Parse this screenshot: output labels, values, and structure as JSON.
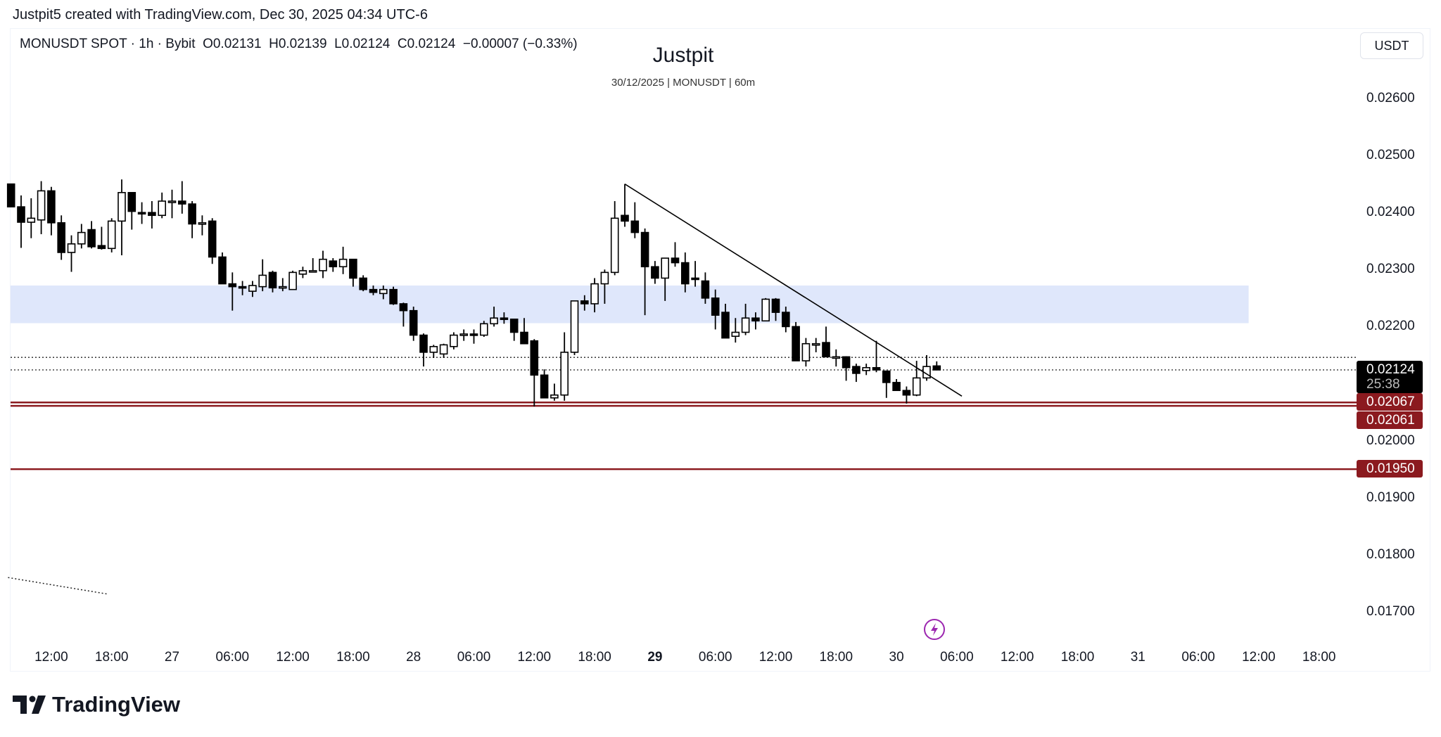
{
  "credit": "Justpit5 created with TradingView.com, Dec 30, 2025 04:34 UTC-6",
  "legend": {
    "symbol": "MONUSDT SPOT · 1h · Bybit",
    "open": "O0.02131",
    "high": "H0.02139",
    "low": "L0.02124",
    "close": "C0.02124",
    "change": "−0.00007 (−0.33%)"
  },
  "watermark": {
    "title": "Justpit",
    "subtitle": "30/12/2025 | MONUSDT | 60m"
  },
  "currency_button": "USDT",
  "price_axis": [
    "0.02600",
    "0.02500",
    "0.02400",
    "0.02300",
    "0.02200",
    "0.02000",
    "0.01900",
    "0.01800",
    "0.01700"
  ],
  "badges": {
    "last_price": "0.02124",
    "countdown": "25:38",
    "level1": "0.02067",
    "level2": "0.02061",
    "level3": "0.01950"
  },
  "time_axis": [
    "12:00",
    "18:00",
    "27",
    "06:00",
    "12:00",
    "18:00",
    "28",
    "06:00",
    "12:00",
    "18:00",
    "29",
    "06:00",
    "12:00",
    "18:00",
    "30",
    "06:00",
    "12:00",
    "18:00",
    "31",
    "06:00",
    "12:00",
    "18:00"
  ],
  "brand": "TradingView",
  "colors": {
    "up_body": "#ffffff",
    "down_body": "#000000",
    "zone": "#dfe7fb",
    "level": "#8b1a1f",
    "last": "#000000"
  },
  "chart_data": {
    "type": "candlestick",
    "interval": "1h",
    "first_candle": "Dec 26 08:00",
    "ylim": [
      0.0165,
      0.0265
    ],
    "candles_ohlc": [
      [
        0.0245,
        0.0245,
        0.0241,
        0.0241
      ],
      [
        0.0241,
        0.0243,
        0.02338,
        0.02383
      ],
      [
        0.02383,
        0.02425,
        0.02355,
        0.0239
      ],
      [
        0.02387,
        0.02455,
        0.02362,
        0.02438
      ],
      [
        0.02438,
        0.02445,
        0.0236,
        0.02382
      ],
      [
        0.02382,
        0.02395,
        0.02317,
        0.0233
      ],
      [
        0.0233,
        0.0236,
        0.02296,
        0.02345
      ],
      [
        0.02345,
        0.0238,
        0.02337,
        0.02365
      ],
      [
        0.0237,
        0.02385,
        0.02337,
        0.0234
      ],
      [
        0.02342,
        0.02375,
        0.02335,
        0.02337
      ],
      [
        0.02337,
        0.0239,
        0.0233,
        0.02385
      ],
      [
        0.02385,
        0.02458,
        0.02325,
        0.02435
      ],
      [
        0.02435,
        0.02435,
        0.0237,
        0.02402
      ],
      [
        0.024,
        0.02418,
        0.0238,
        0.02398
      ],
      [
        0.024,
        0.0242,
        0.02372,
        0.02395
      ],
      [
        0.02395,
        0.02435,
        0.0239,
        0.0242
      ],
      [
        0.02418,
        0.0244,
        0.0239,
        0.0242
      ],
      [
        0.0242,
        0.02455,
        0.02398,
        0.02415
      ],
      [
        0.02415,
        0.0242,
        0.02355,
        0.0238
      ],
      [
        0.0238,
        0.02395,
        0.0236,
        0.02382
      ],
      [
        0.02385,
        0.0239,
        0.0231,
        0.02322
      ],
      [
        0.02322,
        0.0233,
        0.02275,
        0.02275
      ],
      [
        0.02275,
        0.02295,
        0.02228,
        0.0227
      ],
      [
        0.0227,
        0.0228,
        0.02255,
        0.02268
      ],
      [
        0.02262,
        0.0228,
        0.02252,
        0.02272
      ],
      [
        0.0227,
        0.02318,
        0.02262,
        0.0229
      ],
      [
        0.02295,
        0.02298,
        0.0226,
        0.02268
      ],
      [
        0.02268,
        0.02285,
        0.02262,
        0.0227
      ],
      [
        0.02265,
        0.02298,
        0.02265,
        0.02295
      ],
      [
        0.02292,
        0.02305,
        0.02285,
        0.02298
      ],
      [
        0.02298,
        0.0232,
        0.02295,
        0.02298
      ],
      [
        0.02298,
        0.02333,
        0.02285,
        0.02318
      ],
      [
        0.02315,
        0.0232,
        0.02296,
        0.02305
      ],
      [
        0.02305,
        0.0234,
        0.02292,
        0.02318
      ],
      [
        0.02318,
        0.02318,
        0.0227,
        0.02285
      ],
      [
        0.02285,
        0.0229,
        0.02262,
        0.02265
      ],
      [
        0.02265,
        0.02272,
        0.02255,
        0.0226
      ],
      [
        0.02258,
        0.02272,
        0.02248,
        0.02265
      ],
      [
        0.02265,
        0.0227,
        0.02238,
        0.0224
      ],
      [
        0.0224,
        0.02242,
        0.022,
        0.02228
      ],
      [
        0.02228,
        0.02235,
        0.02175,
        0.02185
      ],
      [
        0.02185,
        0.02188,
        0.0213,
        0.02155
      ],
      [
        0.02155,
        0.02168,
        0.02145,
        0.02165
      ],
      [
        0.02152,
        0.0217,
        0.02145,
        0.02168
      ],
      [
        0.02165,
        0.0219,
        0.0216,
        0.02185
      ],
      [
        0.02185,
        0.02195,
        0.02175,
        0.02187
      ],
      [
        0.02187,
        0.02195,
        0.0217,
        0.02185
      ],
      [
        0.02185,
        0.0221,
        0.02182,
        0.02205
      ],
      [
        0.02205,
        0.02235,
        0.022,
        0.02215
      ],
      [
        0.02215,
        0.02225,
        0.02205,
        0.02213
      ],
      [
        0.02213,
        0.02213,
        0.02175,
        0.0219
      ],
      [
        0.0219,
        0.02215,
        0.0217,
        0.0217
      ],
      [
        0.02175,
        0.02178,
        0.0206,
        0.02115
      ],
      [
        0.02115,
        0.02125,
        0.02075,
        0.02075
      ],
      [
        0.02075,
        0.021,
        0.0207,
        0.0208
      ],
      [
        0.0208,
        0.0219,
        0.0207,
        0.02155
      ],
      [
        0.02155,
        0.02245,
        0.0215,
        0.02245
      ],
      [
        0.02245,
        0.02255,
        0.02228,
        0.0224
      ],
      [
        0.0224,
        0.02285,
        0.02225,
        0.02275
      ],
      [
        0.02275,
        0.023,
        0.0224,
        0.02295
      ],
      [
        0.02295,
        0.0242,
        0.0229,
        0.0239
      ],
      [
        0.02395,
        0.0245,
        0.02375,
        0.02385
      ],
      [
        0.02385,
        0.02418,
        0.02355,
        0.02365
      ],
      [
        0.02365,
        0.02372,
        0.0222,
        0.02305
      ],
      [
        0.02305,
        0.02315,
        0.02275,
        0.02285
      ],
      [
        0.02285,
        0.0232,
        0.02245,
        0.0232
      ],
      [
        0.0232,
        0.02348,
        0.02305,
        0.02312
      ],
      [
        0.02312,
        0.0233,
        0.0226,
        0.02275
      ],
      [
        0.02285,
        0.02315,
        0.0227,
        0.02283
      ],
      [
        0.0228,
        0.02295,
        0.0224,
        0.0225
      ],
      [
        0.0225,
        0.02265,
        0.02195,
        0.0222
      ],
      [
        0.02225,
        0.0224,
        0.0218,
        0.0218
      ],
      [
        0.02183,
        0.02215,
        0.02172,
        0.0219
      ],
      [
        0.0219,
        0.0224,
        0.02185,
        0.02215
      ],
      [
        0.02215,
        0.02225,
        0.02195,
        0.0221
      ],
      [
        0.0221,
        0.0225,
        0.0221,
        0.02248
      ],
      [
        0.02248,
        0.0225,
        0.0221,
        0.02225
      ],
      [
        0.02225,
        0.02235,
        0.0219,
        0.022
      ],
      [
        0.022,
        0.02208,
        0.0214,
        0.0214
      ],
      [
        0.0214,
        0.0218,
        0.0213,
        0.0217
      ],
      [
        0.0217,
        0.0218,
        0.02155,
        0.0217
      ],
      [
        0.02172,
        0.022,
        0.02147,
        0.02147
      ],
      [
        0.02147,
        0.0216,
        0.0213,
        0.02147
      ],
      [
        0.02147,
        0.02148,
        0.02105,
        0.02128
      ],
      [
        0.0213,
        0.02135,
        0.02103,
        0.02118
      ],
      [
        0.02123,
        0.02135,
        0.02115,
        0.02128
      ],
      [
        0.02128,
        0.02175,
        0.0212,
        0.02124
      ],
      [
        0.02122,
        0.02122,
        0.02075,
        0.02102
      ],
      [
        0.02102,
        0.02108,
        0.02088,
        0.02088
      ],
      [
        0.02088,
        0.02095,
        0.02065,
        0.0208
      ],
      [
        0.0208,
        0.0214,
        0.02078,
        0.0211
      ],
      [
        0.0211,
        0.0215,
        0.02105,
        0.0213
      ],
      [
        0.02131,
        0.02139,
        0.02124,
        0.02124
      ]
    ],
    "zone": {
      "top": 0.02272,
      "bottom": 0.02206,
      "end_candle_index": 123
    },
    "horizontal_levels": [
      {
        "price": 0.02146,
        "style": "dotted"
      },
      {
        "price": 0.02124,
        "style": "dotted"
      },
      {
        "price": 0.02067,
        "style": "solid"
      },
      {
        "price": 0.02061,
        "style": "solid"
      },
      {
        "price": 0.0195,
        "style": "solid"
      }
    ],
    "trendline": {
      "from": [
        61,
        0.0245
      ],
      "to": [
        94.5,
        0.02078
      ]
    },
    "dotted_segment": {
      "from": [
        -0.3,
        0.0176
      ],
      "to": [
        9.6,
        0.01731
      ]
    }
  }
}
